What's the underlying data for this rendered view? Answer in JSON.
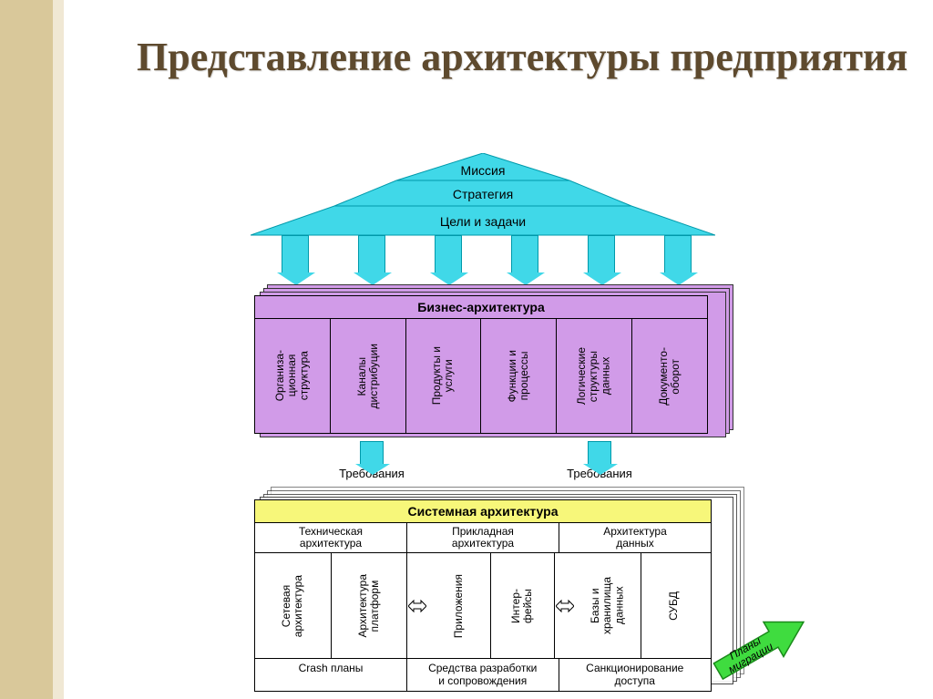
{
  "title": "Представление архитектуры предприятия",
  "colors": {
    "side_strip": "#d9c89a",
    "side_strip_light": "#f0e8d4",
    "title_color": "#5e4a2e",
    "cyan": "#40d8e8",
    "cyan_border": "#0099aa",
    "purple": "#d19be8",
    "yellow": "#f7f77a",
    "green_arrow": "#3fdc3f"
  },
  "roof": {
    "labels": [
      "Миссия",
      "Стратегия",
      "Цели и задачи"
    ]
  },
  "business": {
    "header": "Бизнес-архитектура",
    "columns": [
      "Организа-\nционная\nструктура",
      "Каналы\nдистрибуции",
      "Продукты и\nуслуги",
      "Функции и\nпроцессы",
      "Логические\nструктуры\nданных",
      "Документо-\nоборот"
    ]
  },
  "requirements_label": "Требования",
  "system": {
    "header": "Системная архитектура",
    "subheads": [
      "Техническая\nархитектура",
      "Прикладная\nархитектура",
      "Архитектура\nданных"
    ],
    "group1": [
      "Сетевая\nархитектура",
      "Архитектура\nплатформ"
    ],
    "group2": [
      "Приложения",
      "Интер-\nфейсы"
    ],
    "group3": [
      "Базы и\nхранилища\nданных",
      "СУБД"
    ],
    "footer": [
      "Crash планы",
      "Средства разработки\nи сопровождения",
      "Санкционирование\nдоступа"
    ]
  },
  "migration_label": "Планы\nмиграции",
  "fonts": {
    "title_size": 44,
    "body_size": 13,
    "vtext_size": 12
  }
}
